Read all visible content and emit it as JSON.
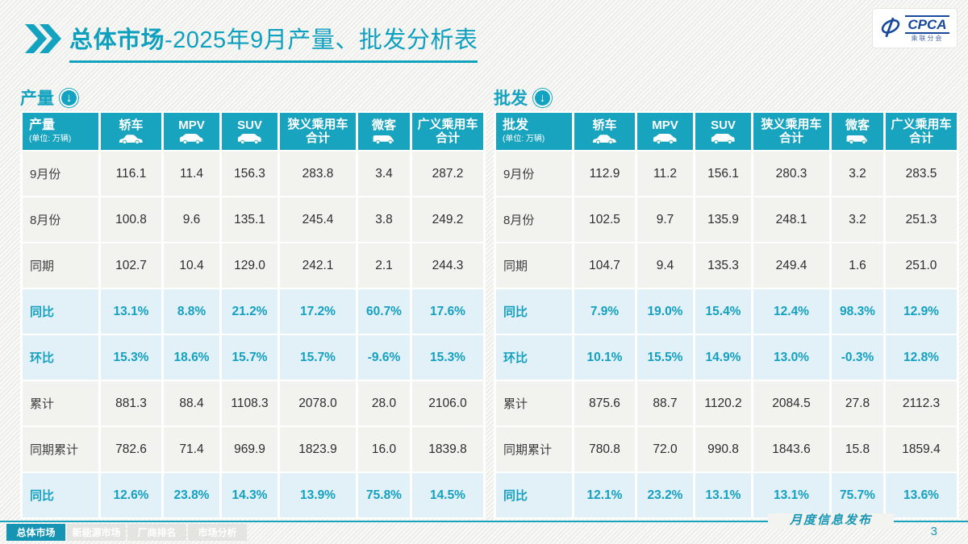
{
  "title": {
    "bold": "总体市场",
    "rest": "-2025年9月产量、批发分析表"
  },
  "logo": {
    "text": "CPCA",
    "subtext": "乘联分会"
  },
  "colors": {
    "accent_teal": "#18a3bf",
    "ratio_row_bg": "#e2f1f8",
    "ratio_text": "#14a0c0",
    "logo_blue": "#17489b"
  },
  "unit_label": "(单位: 万辆)",
  "columns": [
    {
      "label": "轿车",
      "icon": "sedan-icon"
    },
    {
      "label": "MPV",
      "icon": "mpv-icon"
    },
    {
      "label": "SUV",
      "icon": "suv-icon"
    },
    {
      "label": "狭义乘用车\n合计",
      "icon": null
    },
    {
      "label": "微客",
      "icon": "microvan-icon"
    },
    {
      "label": "广义乘用车\n合计",
      "icon": null
    }
  ],
  "tables": [
    {
      "section": "产量",
      "section_icon": "circle-down-arrow-icon",
      "header_label": "产量",
      "rows": [
        {
          "label": "9月份",
          "type": "plain",
          "values": [
            "116.1",
            "11.4",
            "156.3",
            "283.8",
            "3.4",
            "287.2"
          ]
        },
        {
          "label": "8月份",
          "type": "plain",
          "values": [
            "100.8",
            "9.6",
            "135.1",
            "245.4",
            "3.8",
            "249.2"
          ]
        },
        {
          "label": "同期",
          "type": "plain",
          "values": [
            "102.7",
            "10.4",
            "129.0",
            "242.1",
            "2.1",
            "244.3"
          ]
        },
        {
          "label": "同比",
          "type": "ratio",
          "values": [
            "13.1%",
            "8.8%",
            "21.2%",
            "17.2%",
            "60.7%",
            "17.6%"
          ]
        },
        {
          "label": "环比",
          "type": "ratio",
          "values": [
            "15.3%",
            "18.6%",
            "15.7%",
            "15.7%",
            "-9.6%",
            "15.3%"
          ]
        },
        {
          "label": "累计",
          "type": "plain",
          "values": [
            "881.3",
            "88.4",
            "1108.3",
            "2078.0",
            "28.0",
            "2106.0"
          ]
        },
        {
          "label": "同期累计",
          "type": "plain",
          "values": [
            "782.6",
            "71.4",
            "969.9",
            "1823.9",
            "16.0",
            "1839.8"
          ]
        },
        {
          "label": "同比",
          "type": "ratio",
          "values": [
            "12.6%",
            "23.8%",
            "14.3%",
            "13.9%",
            "75.8%",
            "14.5%"
          ]
        }
      ]
    },
    {
      "section": "批发",
      "section_icon": "circle-down-arrow-icon",
      "header_label": "批发",
      "rows": [
        {
          "label": "9月份",
          "type": "plain",
          "values": [
            "112.9",
            "11.2",
            "156.1",
            "280.3",
            "3.2",
            "283.5"
          ]
        },
        {
          "label": "8月份",
          "type": "plain",
          "values": [
            "102.5",
            "9.7",
            "135.9",
            "248.1",
            "3.2",
            "251.3"
          ]
        },
        {
          "label": "同期",
          "type": "plain",
          "values": [
            "104.7",
            "9.4",
            "135.3",
            "249.4",
            "1.6",
            "251.0"
          ]
        },
        {
          "label": "同比",
          "type": "ratio",
          "values": [
            "7.9%",
            "19.0%",
            "15.4%",
            "12.4%",
            "98.3%",
            "12.9%"
          ]
        },
        {
          "label": "环比",
          "type": "ratio",
          "values": [
            "10.1%",
            "15.5%",
            "14.9%",
            "13.0%",
            "-0.3%",
            "12.8%"
          ]
        },
        {
          "label": "累计",
          "type": "plain",
          "values": [
            "875.6",
            "88.7",
            "1120.2",
            "2084.5",
            "27.8",
            "2112.3"
          ]
        },
        {
          "label": "同期累计",
          "type": "plain",
          "values": [
            "780.8",
            "72.0",
            "990.8",
            "1843.6",
            "15.8",
            "1859.4"
          ]
        },
        {
          "label": "同比",
          "type": "ratio",
          "values": [
            "12.1%",
            "23.2%",
            "13.1%",
            "13.1%",
            "75.7%",
            "13.6%"
          ]
        }
      ]
    }
  ],
  "watermark_text": "乘联分会",
  "footer": {
    "tabs": [
      {
        "label": "总体市场",
        "active": true
      },
      {
        "label": "新能源市场",
        "active": false
      },
      {
        "label": "厂商排名",
        "active": false
      },
      {
        "label": "市场分析",
        "active": false
      }
    ],
    "publish": "月度信息发布",
    "page": "3"
  }
}
